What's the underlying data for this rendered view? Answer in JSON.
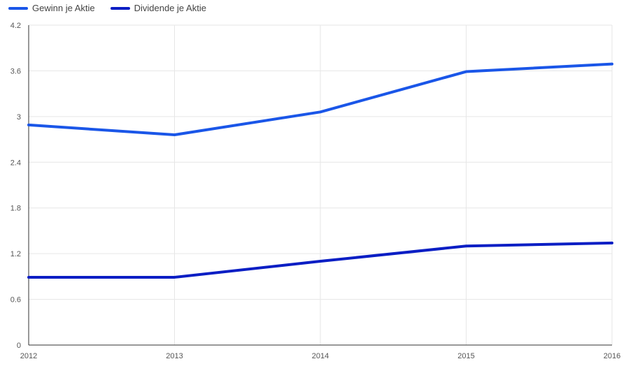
{
  "chart_data": {
    "type": "line",
    "categories": [
      "2012",
      "2013",
      "2014",
      "2015",
      "2016"
    ],
    "ylim": [
      0,
      4.2
    ],
    "y_ticks": [
      "0",
      "0.6",
      "1.2",
      "1.8",
      "2.4",
      "3",
      "3.6",
      "4.2"
    ],
    "y_tick_values": [
      0,
      0.6,
      1.2,
      1.8,
      2.4,
      3,
      3.6,
      4.2
    ],
    "grid": true,
    "legend_position": "top-left",
    "series": [
      {
        "name": "Gewinn je Aktie",
        "color": "#1a56e8",
        "values": [
          2.89,
          2.76,
          3.06,
          3.59,
          3.69
        ]
      },
      {
        "name": "Dividende je Aktie",
        "color": "#0a1ec4",
        "values": [
          0.89,
          0.89,
          1.1,
          1.3,
          1.34
        ]
      }
    ]
  }
}
